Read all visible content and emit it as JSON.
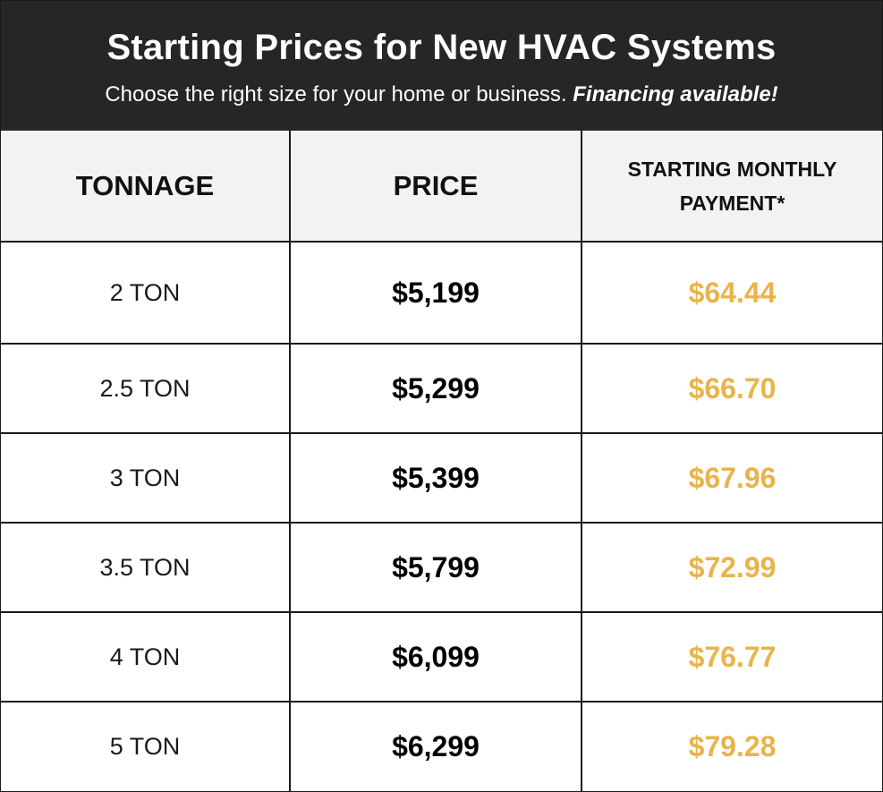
{
  "header": {
    "title": "Starting Prices for New HVAC Systems",
    "subtitle_plain": "Choose the right size for your home or business.",
    "subtitle_emphasis": "Financing available!"
  },
  "table": {
    "columns": [
      "TONNAGE",
      "PRICE",
      "STARTING MONTHLY PAYMENT*"
    ],
    "rows": [
      {
        "tonnage": "2 TON",
        "price": "$5,199",
        "monthly": "$64.44"
      },
      {
        "tonnage": "2.5 TON",
        "price": "$5,299",
        "monthly": "$66.70"
      },
      {
        "tonnage": "3 TON",
        "price": "$5,399",
        "monthly": "$67.96"
      },
      {
        "tonnage": "3.5 TON",
        "price": "$5,799",
        "monthly": "$72.99"
      },
      {
        "tonnage": "4 TON",
        "price": "$6,099",
        "monthly": "$76.77"
      },
      {
        "tonnage": "5 TON",
        "price": "$6,299",
        "monthly": "$79.28"
      }
    ]
  },
  "colors": {
    "header_bg": "#262626",
    "header_text": "#ffffff",
    "column_header_bg": "#f2f2f2",
    "monthly_accent": "#e8b44a",
    "border": "#1a1a1a"
  }
}
